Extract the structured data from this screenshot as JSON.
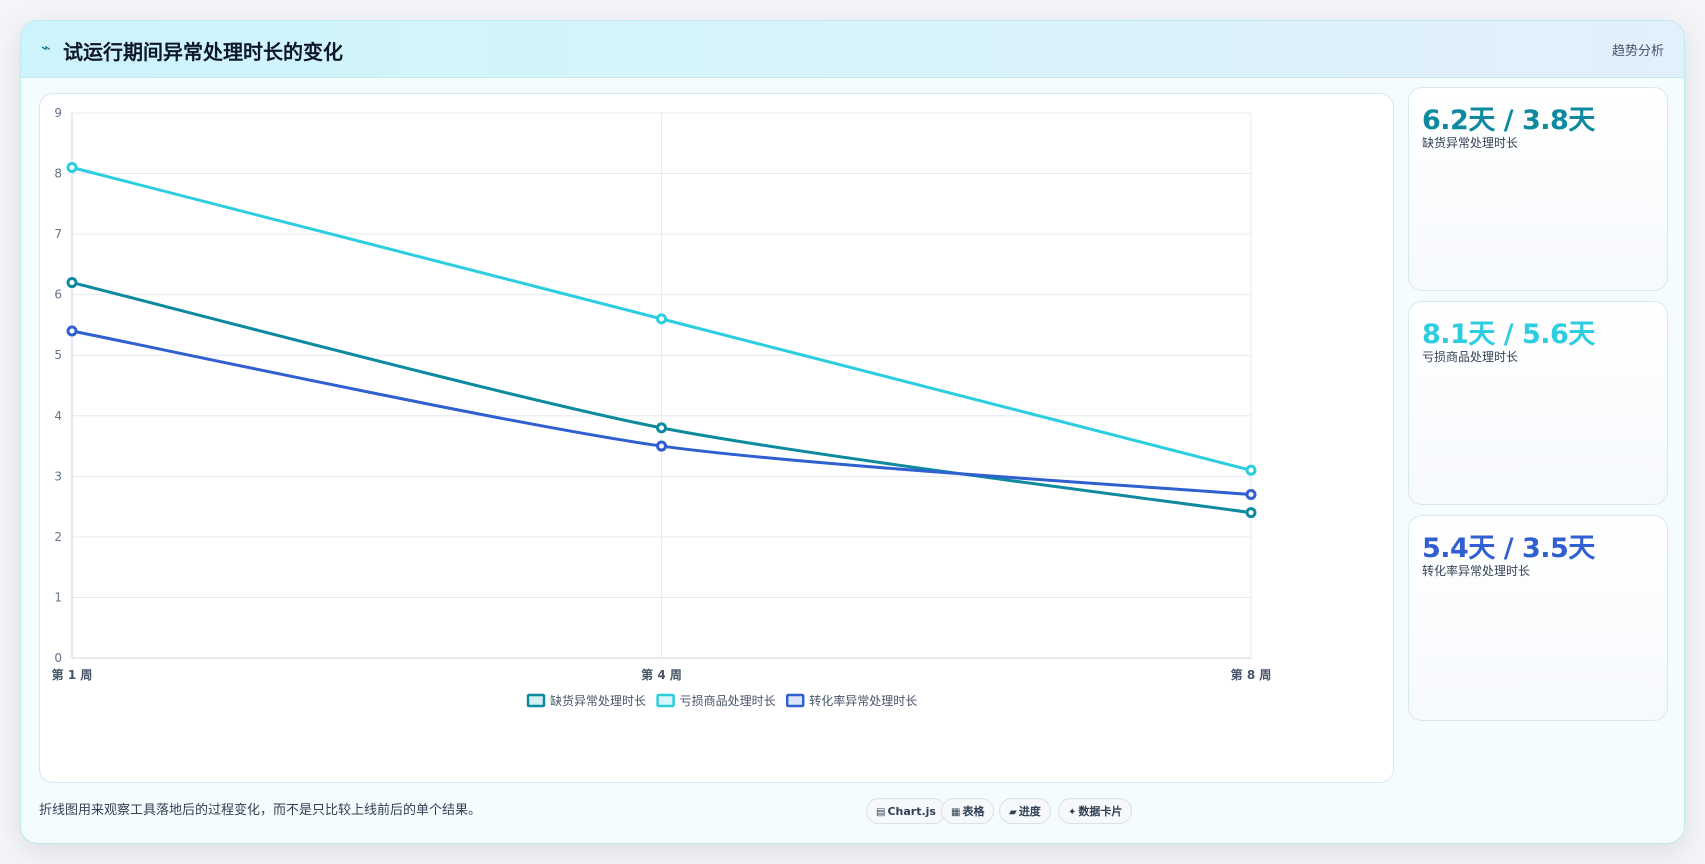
{
  "header": {
    "icon": "⌁",
    "title": "试运行期间异常处理时长的变化",
    "tag": "趋势分析"
  },
  "stats": [
    {
      "value": "6.2天 / 3.8天",
      "label": "缺货异常处理时长",
      "color": "#0e8a9e"
    },
    {
      "value": "8.1天 / 5.6天",
      "label": "亏损商品处理时长",
      "color": "#2dcde0"
    },
    {
      "value": "5.4天 / 3.5天",
      "label": "转化率异常处理时长",
      "color": "#2f5fd0"
    }
  ],
  "footer": {
    "note": "折线图用来观察工具落地后的过程变化，而不是只比较上线前后的单个结果。",
    "chips": [
      {
        "icon": "▤",
        "icon_name": "chart-icon",
        "label": "Chart.js"
      },
      {
        "icon": "▦",
        "icon_name": "table-icon",
        "label": "表格"
      },
      {
        "icon": "▰",
        "icon_name": "progress-icon",
        "label": "进度"
      },
      {
        "icon": "✦",
        "icon_name": "card-icon",
        "label": "数据卡片"
      }
    ]
  },
  "chart_data": {
    "type": "line",
    "title": "",
    "xlabel": "",
    "ylabel": "",
    "categories": [
      "第 1 周",
      "第 4 周",
      "第 8 周"
    ],
    "ylim": [
      0,
      9
    ],
    "yticks": [
      0,
      1,
      2,
      3,
      4,
      5,
      6,
      7,
      8,
      9
    ],
    "grid": true,
    "legend_position": "bottom",
    "series": [
      {
        "name": "缺货异常处理时长",
        "values": [
          6.2,
          3.8,
          2.4
        ],
        "color": "#0e8a9e",
        "fill": "#d6eff3"
      },
      {
        "name": "亏损商品处理时长",
        "values": [
          8.1,
          5.6,
          3.1
        ],
        "color": "#2dcde0",
        "fill": "#d9f6fa"
      },
      {
        "name": "转化率异常处理时长",
        "values": [
          5.4,
          3.5,
          2.7
        ],
        "color": "#2f5fd0",
        "fill": "#dde6f8"
      }
    ]
  }
}
